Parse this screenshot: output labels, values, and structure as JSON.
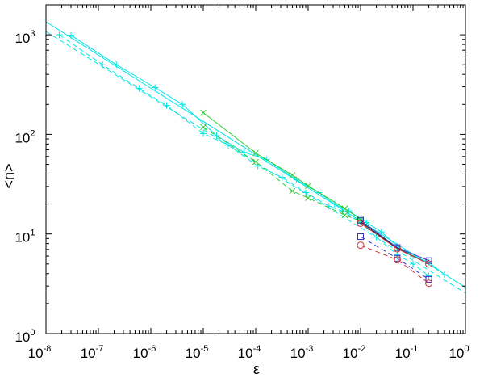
{
  "chart_data": {
    "type": "line",
    "xscale": "log",
    "yscale": "log",
    "xlim": [
      1e-08,
      1
    ],
    "ylim": [
      1,
      2000
    ],
    "xlabel": "ε",
    "ylabel": "<n>",
    "grid": false,
    "xticks": [
      {
        "value": 1e-08,
        "base": "10",
        "exp": "-8"
      },
      {
        "value": 1e-07,
        "base": "10",
        "exp": "-7"
      },
      {
        "value": 1e-06,
        "base": "10",
        "exp": "-6"
      },
      {
        "value": 1e-05,
        "base": "10",
        "exp": "-5"
      },
      {
        "value": 0.0001,
        "base": "10",
        "exp": "-4"
      },
      {
        "value": 0.001,
        "base": "10",
        "exp": "-3"
      },
      {
        "value": 0.01,
        "base": "10",
        "exp": "-2"
      },
      {
        "value": 0.1,
        "base": "10",
        "exp": "-1"
      },
      {
        "value": 1,
        "base": "10",
        "exp": "0"
      }
    ],
    "yticks": [
      {
        "value": 1,
        "base": "10",
        "exp": "0"
      },
      {
        "value": 10,
        "base": "10",
        "exp": "1"
      },
      {
        "value": 100,
        "base": "10",
        "exp": "2"
      },
      {
        "value": 1000,
        "base": "10",
        "exp": "3"
      }
    ],
    "series": [
      {
        "color": "#00e5e5",
        "dash": "solid",
        "marker": "none",
        "x": [
          1e-08,
          1
        ],
        "y": [
          1350,
          2.9
        ]
      },
      {
        "color": "#00e5e5",
        "dash": "dashed",
        "marker": "none",
        "x": [
          1e-08,
          1
        ],
        "y": [
          1080,
          2.55
        ]
      },
      {
        "color": "#00e5e5",
        "dash": "solid",
        "marker": "plus",
        "x": [
          3e-08,
          2.2e-07,
          1.2e-06,
          4e-06,
          1.8e-05,
          6e-05,
          0.00016,
          0.0006,
          0.0016,
          0.0032,
          0.006,
          0.013,
          0.025,
          0.05,
          0.1,
          0.2,
          0.4
        ],
        "y": [
          990,
          500,
          295,
          200,
          97,
          66,
          56,
          35,
          26,
          20,
          17,
          13,
          10.5,
          7.5,
          6,
          5.2,
          3.9
        ]
      },
      {
        "color": "#00e5e5",
        "dash": "dashed",
        "marker": "plus",
        "x": [
          1.8e-08,
          1.2e-07,
          6e-07,
          2e-06,
          1e-05,
          3e-05,
          0.00011,
          0.00032,
          0.0009,
          0.0025,
          0.0045,
          0.01,
          0.02,
          0.05,
          0.1,
          0.2
        ],
        "y": [
          1000,
          500,
          290,
          195,
          102,
          78,
          48,
          37,
          26,
          19,
          17,
          13,
          9.3,
          6.2,
          5,
          3.8
        ]
      },
      {
        "color": "#33cc33",
        "dash": "solid",
        "marker": "x",
        "x": [
          1e-05,
          0.0001,
          0.0005,
          0.001,
          0.005,
          0.01
        ],
        "y": [
          165,
          65,
          39,
          30.5,
          18,
          14
        ]
      },
      {
        "color": "#33cc33",
        "dash": "dashed",
        "marker": "x",
        "x": [
          1e-05,
          0.0001,
          0.0005,
          0.001,
          0.005,
          0.01
        ],
        "y": [
          118,
          53,
          27,
          23,
          15.5,
          13.5
        ]
      },
      {
        "color": "#222222",
        "dash": "solid",
        "marker": "none",
        "x": [
          0.01,
          0.05,
          0.2
        ],
        "y": [
          13.2,
          7.2,
          5
        ]
      },
      {
        "color": "#3333cc",
        "dash": "solid",
        "marker": "square",
        "x": [
          0.01,
          0.05,
          0.2
        ],
        "y": [
          13.7,
          7.3,
          5.4
        ]
      },
      {
        "color": "#cc3333",
        "dash": "solid",
        "marker": "circle",
        "x": [
          0.01,
          0.05,
          0.2
        ],
        "y": [
          12.8,
          7.1,
          5
        ]
      },
      {
        "color": "#3333cc",
        "dash": "dashed",
        "marker": "square",
        "x": [
          0.01,
          0.05,
          0.2
        ],
        "y": [
          9.4,
          5.7,
          3.5
        ]
      },
      {
        "color": "#cc3333",
        "dash": "dashed",
        "marker": "circle",
        "x": [
          0.01,
          0.05,
          0.2
        ],
        "y": [
          7.7,
          5.5,
          3.2
        ]
      }
    ]
  }
}
